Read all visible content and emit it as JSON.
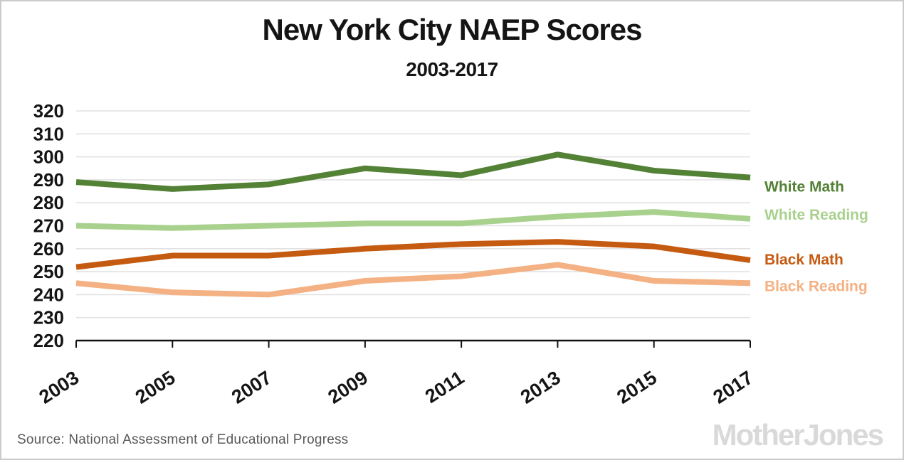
{
  "title": "New York City NAEP Scores",
  "subtitle": "2003-2017",
  "source_note": "Source: National Assessment of Educational Progress",
  "logo_text": "MotherJones",
  "colors": {
    "white_math": "#538135",
    "white_reading": "#A9D18E",
    "black_math": "#C55A11",
    "black_reading": "#F4B183",
    "gridline": "#e2e2e2",
    "axis": "#111111",
    "tick_text": "#151515",
    "source_text": "#595959",
    "logo_gray": "#d9d9d9"
  },
  "chart_data": {
    "type": "line",
    "title": "New York City NAEP Scores",
    "subtitle": "2003-2017",
    "x": [
      2003,
      2005,
      2007,
      2009,
      2011,
      2013,
      2015,
      2017
    ],
    "x_tick_labels": [
      "2003",
      "2005",
      "2007",
      "2009",
      "2011",
      "2013",
      "2015",
      "2017"
    ],
    "series": [
      {
        "name": "White Math",
        "color": "#538135",
        "values": [
          289,
          286,
          288,
          295,
          292,
          301,
          294,
          291
        ]
      },
      {
        "name": "White Reading",
        "color": "#A9D18E",
        "values": [
          270,
          269,
          270,
          271,
          271,
          274,
          276,
          273
        ]
      },
      {
        "name": "Black Math",
        "color": "#C55A11",
        "values": [
          252,
          257,
          257,
          260,
          262,
          263,
          261,
          255
        ]
      },
      {
        "name": "Black Reading",
        "color": "#F4B183",
        "values": [
          245,
          241,
          240,
          246,
          248,
          253,
          246,
          245
        ]
      }
    ],
    "ylim": [
      220,
      320
    ],
    "ytick_step": 10,
    "y_tick_labels": [
      "220",
      "230",
      "240",
      "250",
      "260",
      "270",
      "280",
      "290",
      "300",
      "310",
      "320"
    ],
    "grid": true,
    "legend_position": "right-of-plot"
  }
}
